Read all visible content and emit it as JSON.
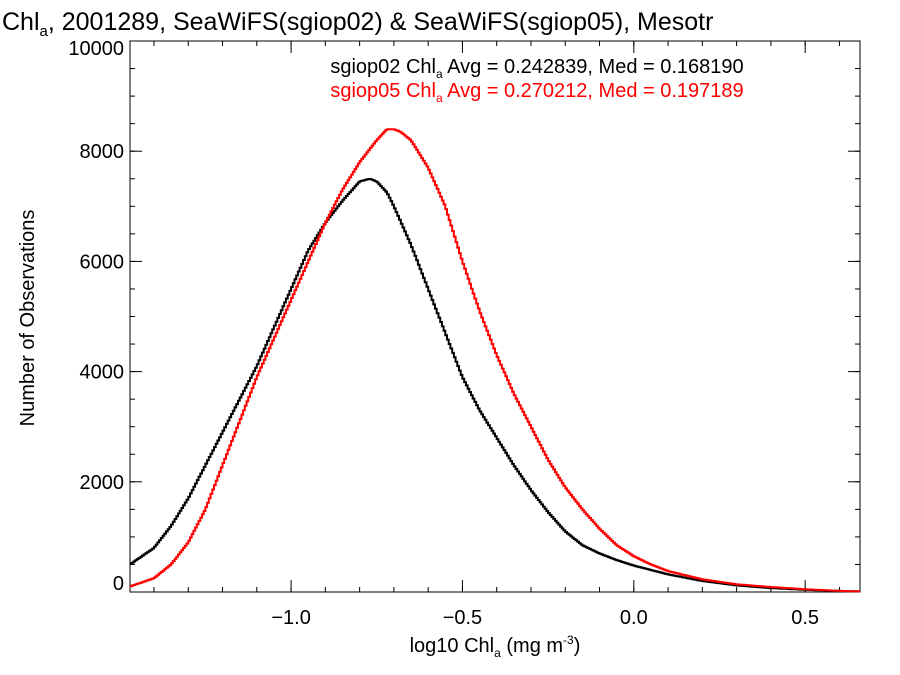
{
  "chart_data": {
    "type": "line",
    "title": {
      "part1": "Chl",
      "sub": "a",
      "part2": ", 2001289, SeaWiFS(sgiop02) & SeaWiFS(sgiop05), Mesotr"
    },
    "xlabel": {
      "part1": "log10 Chl",
      "sub": "a",
      "part2": " (mg m",
      "sup": "-3",
      "part3": ")"
    },
    "ylabel": "Number of Observations",
    "xlim": [
      -1.47,
      0.66
    ],
    "ylim": [
      0,
      10000
    ],
    "x_ticks": [
      {
        "value": -1.0,
        "label": "−1.0"
      },
      {
        "value": -0.5,
        "label": "−0.5"
      },
      {
        "value": 0.0,
        "label": "0.0"
      },
      {
        "value": 0.5,
        "label": "0.5"
      }
    ],
    "y_ticks": [
      {
        "value": 0,
        "label": "0"
      },
      {
        "value": 2000,
        "label": "2000"
      },
      {
        "value": 4000,
        "label": "4000"
      },
      {
        "value": 6000,
        "label": "6000"
      },
      {
        "value": 8000,
        "label": "8000"
      },
      {
        "value": 10000,
        "label": "10000"
      }
    ],
    "grid": false,
    "legend": "top-center",
    "series": [
      {
        "id": "sgiop02",
        "color": "#000000",
        "legend": {
          "part1": "sgiop02 Chl",
          "sub": "a",
          "part2": " Avg = 0.242839, Med = 0.168190"
        },
        "x": [
          -1.47,
          -1.4,
          -1.35,
          -1.3,
          -1.25,
          -1.2,
          -1.15,
          -1.1,
          -1.05,
          -1.0,
          -0.95,
          -0.9,
          -0.85,
          -0.8,
          -0.77,
          -0.75,
          -0.72,
          -0.7,
          -0.65,
          -0.6,
          -0.55,
          -0.5,
          -0.45,
          -0.4,
          -0.35,
          -0.3,
          -0.25,
          -0.2,
          -0.15,
          -0.1,
          -0.05,
          0.0,
          0.05,
          0.1,
          0.2,
          0.3,
          0.4,
          0.5,
          0.6,
          0.66
        ],
        "y": [
          500,
          800,
          1200,
          1700,
          2300,
          2900,
          3500,
          4100,
          4800,
          5500,
          6200,
          6700,
          7100,
          7450,
          7500,
          7450,
          7250,
          7000,
          6300,
          5500,
          4700,
          3900,
          3300,
          2800,
          2300,
          1850,
          1450,
          1100,
          850,
          700,
          580,
          480,
          400,
          320,
          200,
          120,
          70,
          40,
          20,
          10
        ]
      },
      {
        "id": "sgiop05",
        "color": "#ff0000",
        "legend": {
          "part1": "sgiop05 Chl",
          "sub": "a",
          "part2": " Avg = 0.270212, Med = 0.197189"
        },
        "x": [
          -1.47,
          -1.4,
          -1.35,
          -1.3,
          -1.25,
          -1.2,
          -1.15,
          -1.1,
          -1.05,
          -1.0,
          -0.95,
          -0.9,
          -0.85,
          -0.8,
          -0.75,
          -0.72,
          -0.7,
          -0.68,
          -0.65,
          -0.6,
          -0.55,
          -0.5,
          -0.45,
          -0.4,
          -0.35,
          -0.3,
          -0.25,
          -0.2,
          -0.15,
          -0.1,
          -0.05,
          0.0,
          0.05,
          0.1,
          0.2,
          0.3,
          0.4,
          0.5,
          0.6,
          0.66
        ],
        "y": [
          100,
          250,
          500,
          900,
          1500,
          2300,
          3100,
          3900,
          4600,
          5300,
          6000,
          6700,
          7300,
          7800,
          8200,
          8400,
          8400,
          8350,
          8200,
          7700,
          7000,
          6000,
          5100,
          4300,
          3600,
          3000,
          2400,
          1900,
          1500,
          1150,
          850,
          650,
          500,
          380,
          230,
          140,
          90,
          50,
          20,
          10
        ]
      }
    ]
  }
}
